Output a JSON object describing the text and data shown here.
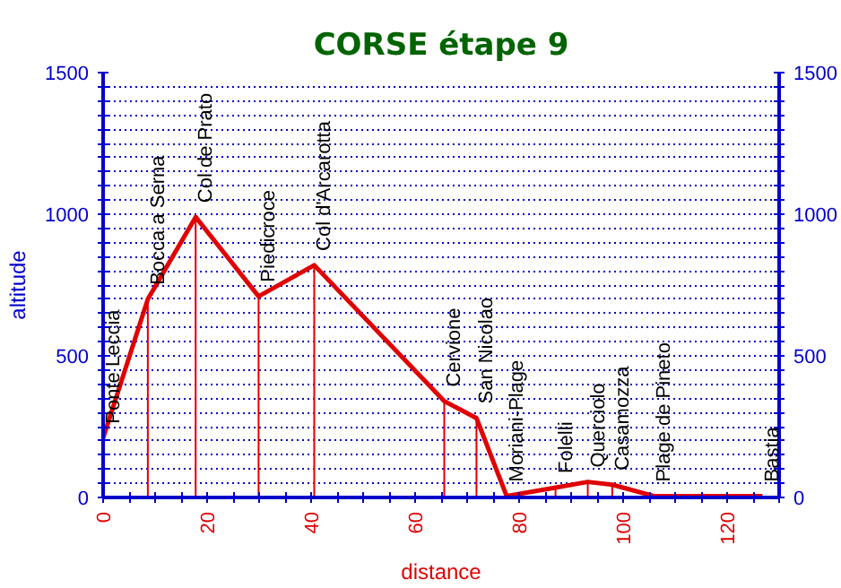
{
  "chart_data": {
    "type": "line",
    "title": "CORSE étape 9",
    "xlabel": "distance",
    "ylabel": "altitude",
    "x": [
      0,
      8.6,
      17.8,
      29.9,
      40.6,
      65.6,
      71.8,
      77.6,
      87,
      93.2,
      97.9,
      105.9,
      126.8
    ],
    "series": [
      {
        "color": "#e00000",
        "values": [
          210,
          700,
          990,
          710,
          820,
          340,
          280,
          5,
          35,
          55,
          45,
          5,
          5
        ]
      }
    ],
    "annotations": [
      {
        "text": "Ponte Leccia",
        "x": 0,
        "y": 210
      },
      {
        "text": "Bocca a Serna",
        "x": 8.6,
        "y": 700
      },
      {
        "text": "Col de Prato",
        "x": 17.8,
        "y": 990
      },
      {
        "text": "Piedicroce",
        "x": 29.9,
        "y": 710
      },
      {
        "text": "Col d'Arcarotta",
        "x": 40.6,
        "y": 820
      },
      {
        "text": "Cervione",
        "x": 65.6,
        "y": 340
      },
      {
        "text": "San Nicolao",
        "x": 71.8,
        "y": 280
      },
      {
        "text": "Moriani-Plage",
        "x": 77.6,
        "y": 5
      },
      {
        "text": "Folelli",
        "x": 87,
        "y": 35
      },
      {
        "text": "Querciolo",
        "x": 93.2,
        "y": 55
      },
      {
        "text": "Casamozza",
        "x": 97.9,
        "y": 45
      },
      {
        "text": "Plage de Pineto",
        "x": 105.9,
        "y": 5
      },
      {
        "text": "Bastia",
        "x": 126.8,
        "y": 5
      }
    ],
    "xlim": [
      0,
      130
    ],
    "xticks": [
      0,
      {
        "value": 5,
        "label": null
      },
      {
        "value": 10,
        "label": null
      },
      {
        "value": 15,
        "label": null
      },
      20,
      {
        "value": 25,
        "label": null
      },
      {
        "value": 30,
        "label": null
      },
      {
        "value": 35,
        "label": null
      },
      40,
      {
        "value": 45,
        "label": null
      },
      {
        "value": 50,
        "label": null
      },
      {
        "value": 55,
        "label": null
      },
      60,
      {
        "value": 65,
        "label": null
      },
      {
        "value": 70,
        "label": null
      },
      {
        "value": 75,
        "label": null
      },
      80,
      {
        "value": 85,
        "label": null
      },
      {
        "value": 90,
        "label": null
      },
      {
        "value": 95,
        "label": null
      },
      100,
      {
        "value": 105,
        "label": null
      },
      {
        "value": 110,
        "label": null
      },
      {
        "value": 115,
        "label": null
      },
      120,
      {
        "value": 125,
        "label": null
      },
      {
        "value": 130,
        "label": null
      }
    ],
    "ylim": [
      0,
      1500
    ],
    "yticks": [
      0,
      {
        "value": 50,
        "label": null
      },
      {
        "value": 100,
        "label": null
      },
      {
        "value": 150,
        "label": null
      },
      {
        "value": 200,
        "label": null
      },
      {
        "value": 250,
        "label": null
      },
      {
        "value": 300,
        "label": null
      },
      {
        "value": 350,
        "label": null
      },
      {
        "value": 400,
        "label": null
      },
      {
        "value": 450,
        "label": null
      },
      500,
      {
        "value": 550,
        "label": null
      },
      {
        "value": 600,
        "label": null
      },
      {
        "value": 650,
        "label": null
      },
      {
        "value": 700,
        "label": null
      },
      {
        "value": 750,
        "label": null
      },
      {
        "value": 800,
        "label": null
      },
      {
        "value": 850,
        "label": null
      },
      {
        "value": 900,
        "label": null
      },
      {
        "value": 950,
        "label": null
      },
      1000,
      {
        "value": 1050,
        "label": null
      },
      {
        "value": 1100,
        "label": null
      },
      {
        "value": 1150,
        "label": null
      },
      {
        "value": 1200,
        "label": null
      },
      {
        "value": 1250,
        "label": null
      },
      {
        "value": 1300,
        "label": null
      },
      {
        "value": 1350,
        "label": null
      },
      {
        "value": 1400,
        "label": null
      },
      {
        "value": 1450,
        "label": null
      },
      1500
    ],
    "y2lim": [
      0,
      1500
    ],
    "y2ticks": [
      0,
      {
        "value": 50,
        "label": null
      },
      {
        "value": 100,
        "label": null
      },
      {
        "value": 150,
        "label": null
      },
      {
        "value": 200,
        "label": null
      },
      {
        "value": 250,
        "label": null
      },
      {
        "value": 300,
        "label": null
      },
      {
        "value": 350,
        "label": null
      },
      {
        "value": 400,
        "label": null
      },
      {
        "value": 450,
        "label": null
      },
      500,
      {
        "value": 550,
        "label": null
      },
      {
        "value": 600,
        "label": null
      },
      {
        "value": 650,
        "label": null
      },
      {
        "value": 700,
        "label": null
      },
      {
        "value": 750,
        "label": null
      },
      {
        "value": 800,
        "label": null
      },
      {
        "value": 850,
        "label": null
      },
      {
        "value": 900,
        "label": null
      },
      {
        "value": 950,
        "label": null
      },
      1000,
      {
        "value": 1050,
        "label": null
      },
      {
        "value": 1100,
        "label": null
      },
      {
        "value": 1150,
        "label": null
      },
      {
        "value": 1200,
        "label": null
      },
      {
        "value": 1250,
        "label": null
      },
      {
        "value": 1300,
        "label": null
      },
      {
        "value": 1350,
        "label": null
      },
      {
        "value": 1400,
        "label": null
      },
      {
        "value": 1450,
        "label": null
      },
      1500
    ],
    "grid": "y",
    "marker": "none",
    "line_style": "solid"
  }
}
